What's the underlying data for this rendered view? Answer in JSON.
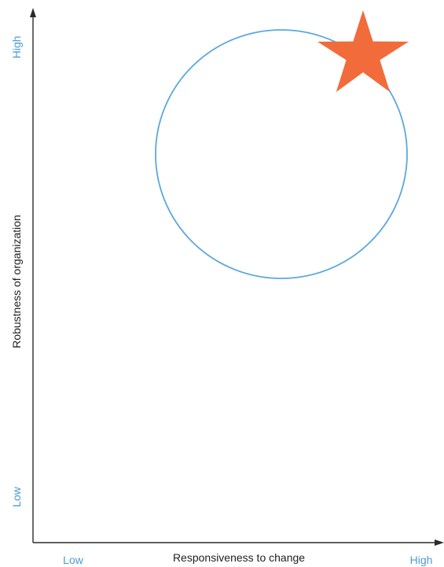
{
  "diagram": {
    "x_axis": {
      "title": "Responsiveness to change",
      "low_label": "Low",
      "high_label": "High"
    },
    "y_axis": {
      "title": "Robustness of organization",
      "low_label": "Low",
      "high_label": "High"
    },
    "colors": {
      "label_blue": "#4a9bd6",
      "circle_blue": "#5aa8de",
      "star_orange": "#f26b3a",
      "axis": "#2b2b2b"
    },
    "shapes": {
      "circle": "circle-outline",
      "marker": "star-icon"
    }
  }
}
